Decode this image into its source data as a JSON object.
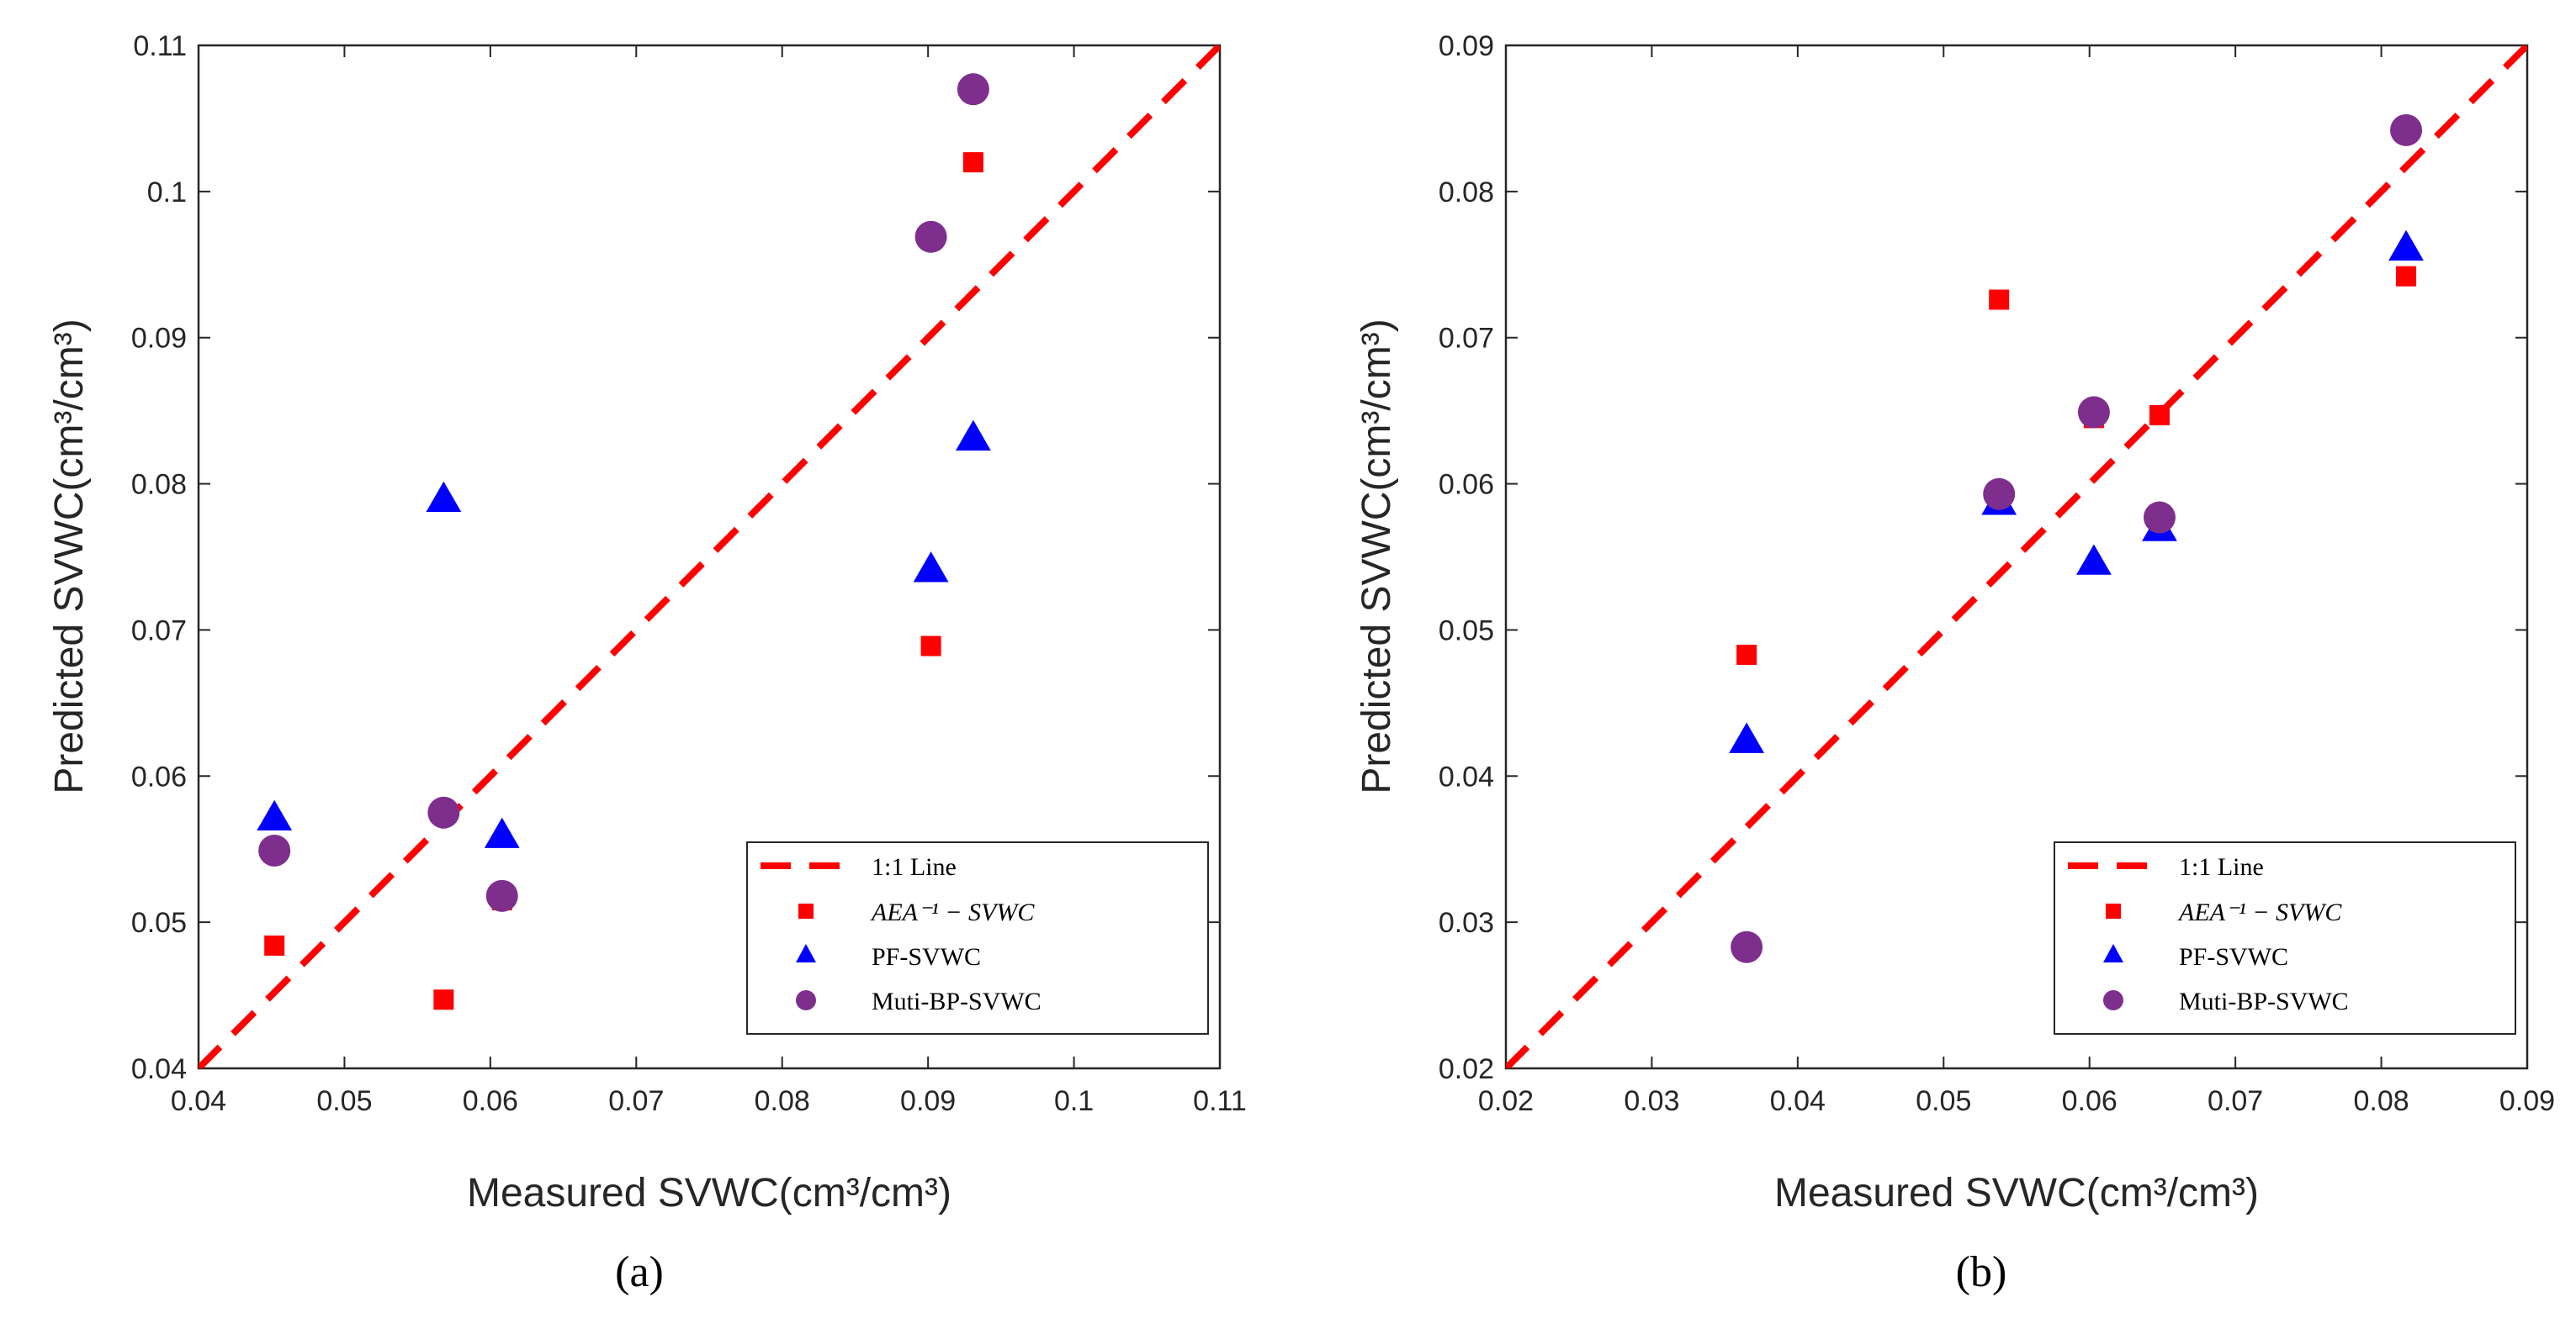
{
  "chart_data": [
    {
      "type": "scatter",
      "panel_label": "(a)",
      "xlabel": "Measured SVWC(cm³/cm³)",
      "ylabel": "Predicted SVWC(cm³/cm³)",
      "xlim": [
        0.04,
        0.11
      ],
      "ylim": [
        0.04,
        0.11
      ],
      "xticks": [
        "0.04",
        "0.05",
        "0.06",
        "0.07",
        "0.08",
        "0.09",
        "0.1",
        "0.11"
      ],
      "yticks": [
        "0.04",
        "0.05",
        "0.06",
        "0.07",
        "0.08",
        "0.09",
        "0.1",
        "0.11"
      ],
      "grid": false,
      "legend_position": "bottom-right",
      "reference_line": {
        "name": "1:1 Line",
        "color": "#ff0000",
        "style": "dashed"
      },
      "series": [
        {
          "name": "AEA⁻¹ − SVWC",
          "marker": "square",
          "color": "#ff0000",
          "x": [
            0.0452,
            0.0568,
            0.0608,
            0.0902,
            0.0931
          ],
          "y": [
            0.0484,
            0.0447,
            0.0515,
            0.0689,
            0.102
          ]
        },
        {
          "name": "PF-SVWC",
          "marker": "triangle",
          "color": "#0000ff",
          "x": [
            0.0452,
            0.0568,
            0.0608,
            0.0902,
            0.0931
          ],
          "y": [
            0.0571,
            0.0789,
            0.0559,
            0.0741,
            0.0831
          ]
        },
        {
          "name": "Muti-BP-SVWC",
          "marker": "circle",
          "color": "#7e2f8e",
          "x": [
            0.0452,
            0.0568,
            0.0608,
            0.0902,
            0.0931
          ],
          "y": [
            0.0549,
            0.0575,
            0.0518,
            0.0969,
            0.107
          ]
        }
      ]
    },
    {
      "type": "scatter",
      "panel_label": "(b)",
      "xlabel": "Measured SVWC(cm³/cm³)",
      "ylabel": "Predicted SVWC(cm³/cm³)",
      "xlim": [
        0.02,
        0.09
      ],
      "ylim": [
        0.02,
        0.09
      ],
      "xticks": [
        "0.02",
        "0.03",
        "0.04",
        "0.05",
        "0.06",
        "0.07",
        "0.08",
        "0.09"
      ],
      "yticks": [
        "0.02",
        "0.03",
        "0.04",
        "0.05",
        "0.06",
        "0.07",
        "0.08",
        "0.09"
      ],
      "grid": false,
      "legend_position": "bottom-right",
      "reference_line": {
        "name": "1:1 Line",
        "color": "#ff0000",
        "style": "dashed"
      },
      "series": [
        {
          "name": "AEA⁻¹ − SVWC",
          "marker": "square",
          "color": "#ff0000",
          "x": [
            0.0365,
            0.0538,
            0.0603,
            0.0648,
            0.0817
          ],
          "y": [
            0.0483,
            0.0726,
            0.0645,
            0.0647,
            0.0742
          ]
        },
        {
          "name": "PF-SVWC",
          "marker": "triangle",
          "color": "#0000ff",
          "x": [
            0.0365,
            0.0538,
            0.0603,
            0.0648,
            0.0817
          ],
          "y": [
            0.0424,
            0.0587,
            0.0546,
            0.0569,
            0.0761
          ]
        },
        {
          "name": "Muti-BP-SVWC",
          "marker": "circle",
          "color": "#7e2f8e",
          "x": [
            0.0365,
            0.0538,
            0.0603,
            0.0648,
            0.0817
          ],
          "y": [
            0.0283,
            0.0593,
            0.0649,
            0.0577,
            0.0842
          ]
        }
      ]
    }
  ]
}
